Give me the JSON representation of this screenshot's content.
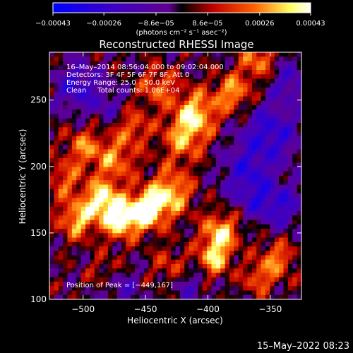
{
  "chart_data": {
    "type": "heatmap",
    "title": "Reconstructed RHESSI Image",
    "xlabel": "Heliocentric X (arcsec)",
    "ylabel": "Heliocentric Y (arcsec)",
    "xlim": [
      -527,
      -325
    ],
    "ylim": [
      100,
      286
    ],
    "x_ticks": [
      -500,
      -450,
      -400,
      -350
    ],
    "y_ticks": [
      100,
      150,
      200,
      250
    ],
    "colorbar": {
      "range": [
        -0.00043,
        0.00043
      ],
      "tick_values": [
        -0.00043,
        -0.00026,
        -8.6e-05,
        8.6e-05,
        0.00026,
        0.00043
      ],
      "tick_labels": [
        "−0.00043",
        "−0.00026",
        "−8.6e−05",
        "8.6e−05",
        "0.00026",
        "0.00043"
      ],
      "units_label": "(photons cm⁻² s⁻¹ asec⁻²)",
      "colors": [
        "#0000ff",
        "#4000c0",
        "#600090",
        "#000000",
        "#c00000",
        "#ff6000",
        "#ffff60",
        "#ffffff"
      ]
    },
    "info_lines": [
      "16–May–2014 08:56:04.000 to 09:02:04.000",
      "Detectors: 3F 4F 5F 6F 7F 8F, Att 0",
      "Energy Range: 25.0 – 50.0 keV",
      "Clean     Total counts: 1.06E+04"
    ],
    "peak_label": "Position of Peak = [−449,167]",
    "peak": [
      -449,
      167
    ],
    "footer_timestamp": "15–May–2022 08:23",
    "blobs": [
      {
        "x": -449,
        "y": 167,
        "amp": 1.0,
        "s": 10
      },
      {
        "x": -470,
        "y": 160,
        "amp": 0.9,
        "s": 10
      },
      {
        "x": -485,
        "y": 175,
        "amp": 0.85,
        "s": 10
      },
      {
        "x": -430,
        "y": 180,
        "amp": 0.75,
        "s": 12
      },
      {
        "x": -505,
        "y": 160,
        "amp": 0.7,
        "s": 10
      },
      {
        "x": -390,
        "y": 150,
        "amp": 0.8,
        "s": 10
      },
      {
        "x": -395,
        "y": 130,
        "amp": 0.7,
        "s": 9
      },
      {
        "x": -410,
        "y": 240,
        "amp": 0.75,
        "s": 12
      },
      {
        "x": -420,
        "y": 220,
        "amp": 0.55,
        "s": 12
      },
      {
        "x": -380,
        "y": 255,
        "amp": 0.65,
        "s": 10
      },
      {
        "x": -360,
        "y": 280,
        "amp": 0.55,
        "s": 10
      },
      {
        "x": -440,
        "y": 260,
        "amp": 0.5,
        "s": 10
      },
      {
        "x": -475,
        "y": 205,
        "amp": 0.55,
        "s": 12
      },
      {
        "x": -500,
        "y": 215,
        "amp": 0.5,
        "s": 10
      },
      {
        "x": -460,
        "y": 230,
        "amp": 0.45,
        "s": 10
      },
      {
        "x": -345,
        "y": 130,
        "amp": 0.55,
        "s": 10
      },
      {
        "x": -360,
        "y": 115,
        "amp": 0.45,
        "s": 8
      },
      {
        "x": -515,
        "y": 190,
        "amp": 0.45,
        "s": 10
      },
      {
        "x": -480,
        "y": 120,
        "amp": 0.3,
        "s": 10
      },
      {
        "x": -430,
        "y": 125,
        "amp": 0.35,
        "s": 10
      },
      {
        "x": -350,
        "y": 225,
        "amp": -0.6,
        "s": 16
      },
      {
        "x": -370,
        "y": 195,
        "amp": -0.5,
        "s": 14
      },
      {
        "x": -340,
        "y": 170,
        "amp": -0.5,
        "s": 12
      },
      {
        "x": -505,
        "y": 260,
        "amp": -0.55,
        "s": 12
      },
      {
        "x": -480,
        "y": 245,
        "amp": -0.3,
        "s": 10
      },
      {
        "x": -335,
        "y": 265,
        "amp": -0.45,
        "s": 10
      },
      {
        "x": -470,
        "y": 110,
        "amp": -0.4,
        "s": 10
      },
      {
        "x": -415,
        "y": 110,
        "amp": -0.3,
        "s": 10
      },
      {
        "x": -360,
        "y": 175,
        "amp": -0.35,
        "s": 10
      }
    ]
  }
}
